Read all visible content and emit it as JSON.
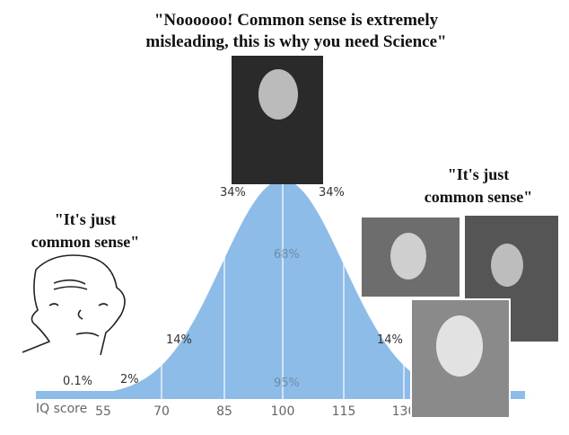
{
  "top_caption": {
    "lines": [
      "\"Noooooo! Common sense is extremely",
      "misleading, this is why you need Science\""
    ]
  },
  "left_caption": {
    "lines": [
      "\"It's just",
      "common sense\""
    ]
  },
  "right_caption": {
    "lines": [
      "\"It's just",
      "common sense\""
    ]
  },
  "curve": {
    "segment_labels": [
      "0.1%",
      "2%",
      "14%",
      "34%",
      "34%",
      "14%"
    ],
    "inner_labels": [
      "68%",
      "95%"
    ],
    "axis_title": "IQ score",
    "axis_labels": [
      "55",
      "70",
      "85",
      "100",
      "115",
      "130"
    ]
  }
}
